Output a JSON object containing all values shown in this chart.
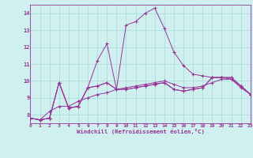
{
  "xlabel": "Windchill (Refroidissement éolien,°C)",
  "bg_color": "#cff0ee",
  "grid_color": "#aadddd",
  "line_color": "#993399",
  "xlim": [
    0,
    23
  ],
  "ylim": [
    7.5,
    14.5
  ],
  "xticks": [
    0,
    1,
    2,
    3,
    4,
    5,
    6,
    7,
    8,
    9,
    10,
    11,
    12,
    13,
    14,
    15,
    16,
    17,
    18,
    19,
    20,
    21,
    22,
    23
  ],
  "yticks": [
    8,
    9,
    10,
    11,
    12,
    13,
    14
  ],
  "curve1": [
    7.8,
    7.7,
    7.8,
    9.9,
    8.4,
    8.5,
    9.6,
    9.7,
    9.9,
    9.5,
    9.5,
    9.6,
    9.7,
    9.8,
    9.9,
    9.5,
    9.4,
    9.5,
    9.6,
    10.2,
    10.2,
    10.2,
    9.7,
    9.2
  ],
  "curve2": [
    7.8,
    7.7,
    7.8,
    9.9,
    8.4,
    8.5,
    9.6,
    11.2,
    12.2,
    9.5,
    13.3,
    13.5,
    14.0,
    14.3,
    13.1,
    11.7,
    10.9,
    10.4,
    10.3,
    10.2,
    10.2,
    10.1,
    9.7,
    9.2
  ],
  "curve3": [
    7.8,
    7.7,
    7.8,
    9.9,
    8.4,
    8.5,
    9.6,
    9.7,
    9.9,
    9.5,
    9.5,
    9.6,
    9.7,
    9.8,
    9.9,
    9.5,
    9.4,
    9.5,
    9.6,
    10.2,
    10.2,
    10.2,
    9.7,
    9.2
  ],
  "curve4": [
    7.8,
    7.7,
    8.2,
    8.5,
    8.5,
    8.8,
    9.0,
    9.2,
    9.3,
    9.5,
    9.6,
    9.7,
    9.8,
    9.9,
    10.0,
    9.8,
    9.6,
    9.6,
    9.7,
    9.9,
    10.1,
    10.1,
    9.6,
    9.2
  ]
}
